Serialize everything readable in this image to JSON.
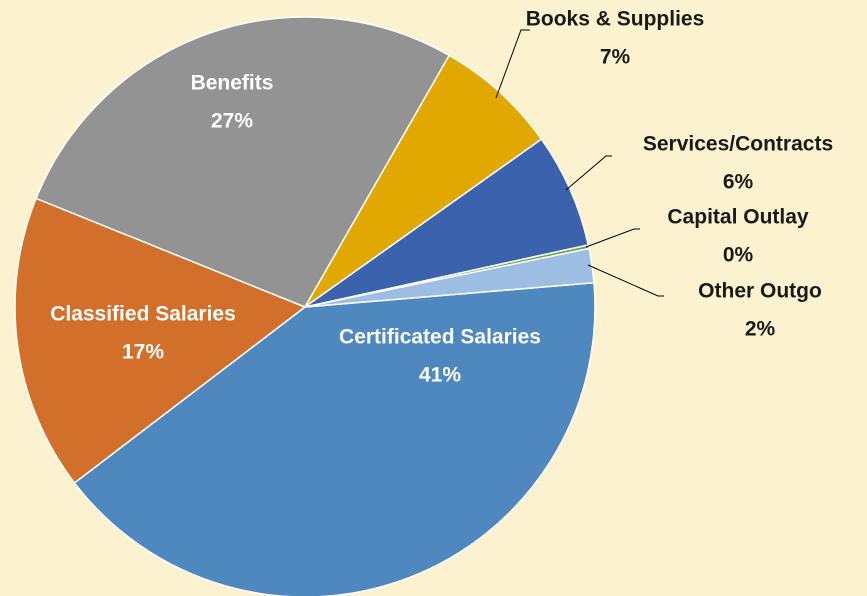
{
  "chart_data": {
    "type": "pie",
    "categories": [
      "Certificated Salaries",
      "Classified Salaries",
      "Benefits",
      "Books & Supplies",
      "Services/Contracts",
      "Capital Outlay",
      "Other Outgo"
    ],
    "values": [
      41,
      16.5,
      27.2,
      6.9,
      6.4,
      0.2,
      1.9
    ],
    "value_labels": [
      "41%",
      "17%",
      "27%",
      "7%",
      "6%",
      "0%",
      "2%"
    ],
    "colors": [
      "#4f88bf",
      "#d2702b",
      "#939393",
      "#e0a800",
      "#3a62ad",
      "#6aaa3f",
      "#9dbde3"
    ]
  }
}
